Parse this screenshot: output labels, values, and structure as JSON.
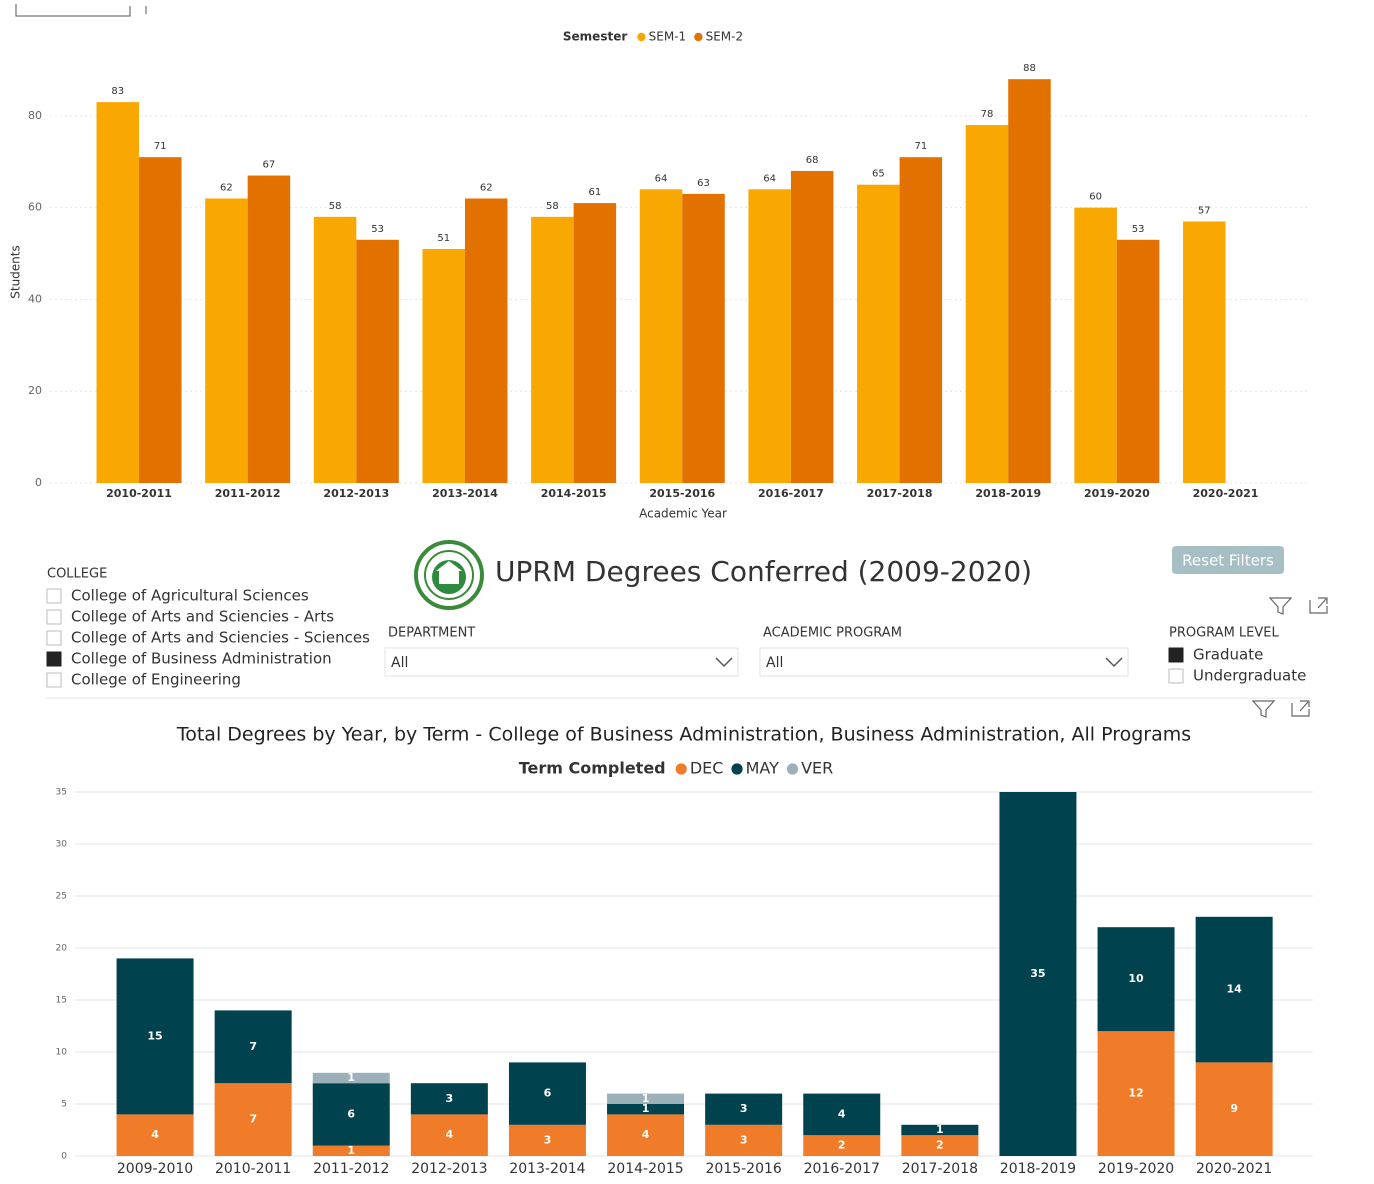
{
  "header": {
    "title": "UPRM Degrees Conferred (2009-2020)",
    "reset_button": "Reset Filters"
  },
  "college_slicer": {
    "title": "COLLEGE",
    "options": [
      {
        "label": "College of Agricultural Sciences",
        "checked": false
      },
      {
        "label": "College of Arts and Sciencies - Arts",
        "checked": false
      },
      {
        "label": "College of Arts and Sciencies - Sciences",
        "checked": false
      },
      {
        "label": "College of Business Administration",
        "checked": true
      },
      {
        "label": "College of Engineering",
        "checked": false
      }
    ]
  },
  "department_slicer": {
    "title": "DEPARTMENT",
    "value": "All"
  },
  "program_slicer": {
    "title": "ACADEMIC PROGRAM",
    "value": "All"
  },
  "level_slicer": {
    "title": "PROGRAM LEVEL",
    "options": [
      {
        "label": "Graduate",
        "checked": true
      },
      {
        "label": "Undergraduate",
        "checked": false
      }
    ]
  },
  "chart_data": [
    {
      "type": "bar",
      "legend_title": "Semester",
      "y_label": "Students",
      "x_label": "Academic Year",
      "categories": [
        "2010-2011",
        "2011-2012",
        "2012-2013",
        "2013-2014",
        "2014-2015",
        "2015-2016",
        "2016-2017",
        "2017-2018",
        "2018-2019",
        "2019-2020",
        "2020-2021"
      ],
      "series": [
        {
          "name": "SEM-1",
          "color": "#f8a800",
          "values": [
            83,
            62,
            58,
            51,
            58,
            64,
            64,
            65,
            78,
            60,
            57
          ]
        },
        {
          "name": "SEM-2",
          "color": "#e37100",
          "values": [
            71,
            67,
            53,
            62,
            61,
            63,
            68,
            71,
            88,
            53,
            null
          ]
        }
      ],
      "ylim": [
        0,
        90
      ],
      "yticks": [
        0,
        20,
        40,
        60,
        80
      ],
      "grid": true
    },
    {
      "type": "stacked_bar",
      "title": "Total Degrees by Year, by Term - College of Business Administration,  Business Administration, All Programs",
      "legend_title": "Term Completed",
      "categories": [
        "2009-2010",
        "2010-2011",
        "2011-2012",
        "2012-2013",
        "2013-2014",
        "2014-2015",
        "2015-2016",
        "2016-2017",
        "2017-2018",
        "2018-2019",
        "2019-2020",
        "2020-2021"
      ],
      "series": [
        {
          "name": "DEC",
          "color": "#f07c2a",
          "values": [
            4,
            7,
            1,
            4,
            3,
            4,
            3,
            2,
            2,
            null,
            12,
            9
          ]
        },
        {
          "name": "MAY",
          "color": "#00424e",
          "values": [
            15,
            7,
            6,
            3,
            6,
            1,
            3,
            4,
            1,
            35,
            10,
            14
          ]
        },
        {
          "name": "VER",
          "color": "#9bb0b8",
          "values": [
            null,
            null,
            1,
            null,
            null,
            1,
            null,
            null,
            null,
            null,
            null,
            null
          ]
        }
      ],
      "ylim": [
        0,
        35
      ],
      "yticks": [
        0,
        5,
        10,
        15,
        20,
        25,
        30,
        35
      ],
      "grid": true
    }
  ]
}
